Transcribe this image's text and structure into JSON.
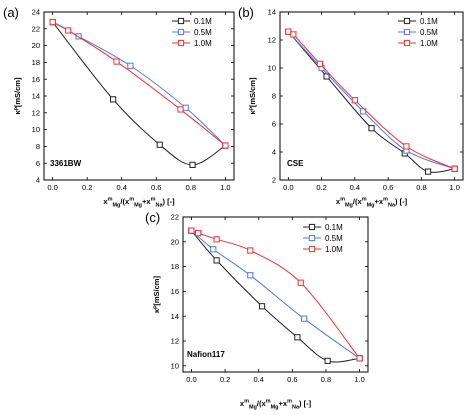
{
  "chart_data": [
    {
      "type": "line",
      "panel_label": "(a)",
      "sample_label": "3361BW",
      "ylabel": "κᴾ[mS/cm]",
      "xlabel": "x_Mg^m/(x_Mg^m+x_Na^m) [-]",
      "xlim": [
        -0.05,
        1.05
      ],
      "ylim": [
        4,
        24
      ],
      "xticks": [
        0.0,
        0.2,
        0.4,
        0.6,
        0.8,
        1.0
      ],
      "xtick_labels": [
        "0.0",
        "0.2",
        "0.4",
        "0.6",
        "0.8",
        "1.0"
      ],
      "yticks": [
        4,
        6,
        8,
        10,
        12,
        14,
        16,
        18,
        20,
        22,
        24
      ],
      "ytick_labels": [
        "4",
        "6",
        "8",
        "10",
        "12",
        "14",
        "16",
        "18",
        "20",
        "22",
        "24"
      ],
      "legend_position": "top-right",
      "series": [
        {
          "name": "0.1M",
          "color": "#222222",
          "x": [
            0.0,
            0.35,
            0.62,
            0.81,
            1.0
          ],
          "y": [
            22.8,
            13.6,
            8.2,
            5.8,
            8.1
          ]
        },
        {
          "name": "0.5M",
          "color": "#5577ee",
          "x": [
            0.0,
            0.15,
            0.45,
            0.77,
            1.0
          ],
          "y": [
            22.8,
            21.1,
            17.6,
            12.6,
            8.1
          ]
        },
        {
          "name": "1.0M",
          "color": "#ee3333",
          "x": [
            0.0,
            0.09,
            0.37,
            0.74,
            1.0
          ],
          "y": [
            22.8,
            21.8,
            18.1,
            12.4,
            8.1
          ]
        }
      ]
    },
    {
      "type": "line",
      "panel_label": "(b)",
      "sample_label": "CSE",
      "ylabel": "κᴾ[mS/cm]",
      "xlabel": "x_Mg^m/(x_Mg^m+x_Na^m) [-]",
      "xlim": [
        -0.05,
        1.05
      ],
      "ylim": [
        2,
        14
      ],
      "xticks": [
        0.0,
        0.2,
        0.4,
        0.6,
        0.8,
        1.0
      ],
      "xtick_labels": [
        "0.0",
        "0.2",
        "0.4",
        "0.6",
        "0.8",
        "1.0"
      ],
      "yticks": [
        2,
        4,
        6,
        8,
        10,
        12,
        14
      ],
      "ytick_labels": [
        "2",
        "4",
        "6",
        "8",
        "10",
        "12",
        "14"
      ],
      "legend_position": "top-right",
      "series": [
        {
          "name": "0.1M",
          "color": "#222222",
          "x": [
            0.0,
            0.23,
            0.5,
            0.7,
            0.84,
            1.0
          ],
          "y": [
            12.6,
            9.4,
            5.7,
            3.9,
            2.6,
            2.8
          ]
        },
        {
          "name": "0.5M",
          "color": "#5577ee",
          "x": [
            0.0,
            0.2,
            0.45,
            0.71,
            1.0
          ],
          "y": [
            12.6,
            10.0,
            6.9,
            4.1,
            2.8
          ]
        },
        {
          "name": "1.0M",
          "color": "#ee3333",
          "x": [
            0.0,
            0.03,
            0.19,
            0.4,
            0.71,
            1.0
          ],
          "y": [
            12.6,
            12.4,
            10.3,
            7.7,
            4.4,
            2.8
          ]
        }
      ]
    },
    {
      "type": "line",
      "panel_label": "(c)",
      "sample_label": "Nafion117",
      "ylabel": "κᴾ[mS/cm]",
      "xlabel": "x_Mg^m/(x_Mg^m+x_Na^m) [-]",
      "xlim": [
        -0.05,
        1.05
      ],
      "ylim": [
        9.5,
        22
      ],
      "xticks": [
        0.0,
        0.2,
        0.4,
        0.6,
        0.8,
        1.0
      ],
      "xtick_labels": [
        "0.0",
        "0.2",
        "0.4",
        "0.6",
        "0.8",
        "1.0"
      ],
      "yticks": [
        10,
        12,
        14,
        16,
        18,
        20,
        22
      ],
      "ytick_labels": [
        "10",
        "12",
        "14",
        "16",
        "18",
        "20",
        "22"
      ],
      "legend_position": "top-right",
      "series": [
        {
          "name": "0.1M",
          "color": "#222222",
          "x": [
            0.0,
            0.15,
            0.42,
            0.63,
            0.81,
            1.0
          ],
          "y": [
            20.9,
            18.5,
            14.8,
            12.3,
            10.4,
            10.6
          ]
        },
        {
          "name": "0.5M",
          "color": "#5577ee",
          "x": [
            0.0,
            0.13,
            0.35,
            0.67,
            1.0
          ],
          "y": [
            20.9,
            19.4,
            17.3,
            13.8,
            10.6
          ]
        },
        {
          "name": "1.0M",
          "color": "#ee3333",
          "x": [
            0.0,
            0.04,
            0.15,
            0.35,
            0.65,
            1.0
          ],
          "y": [
            20.9,
            20.7,
            20.2,
            19.3,
            16.7,
            10.6
          ]
        }
      ]
    }
  ]
}
